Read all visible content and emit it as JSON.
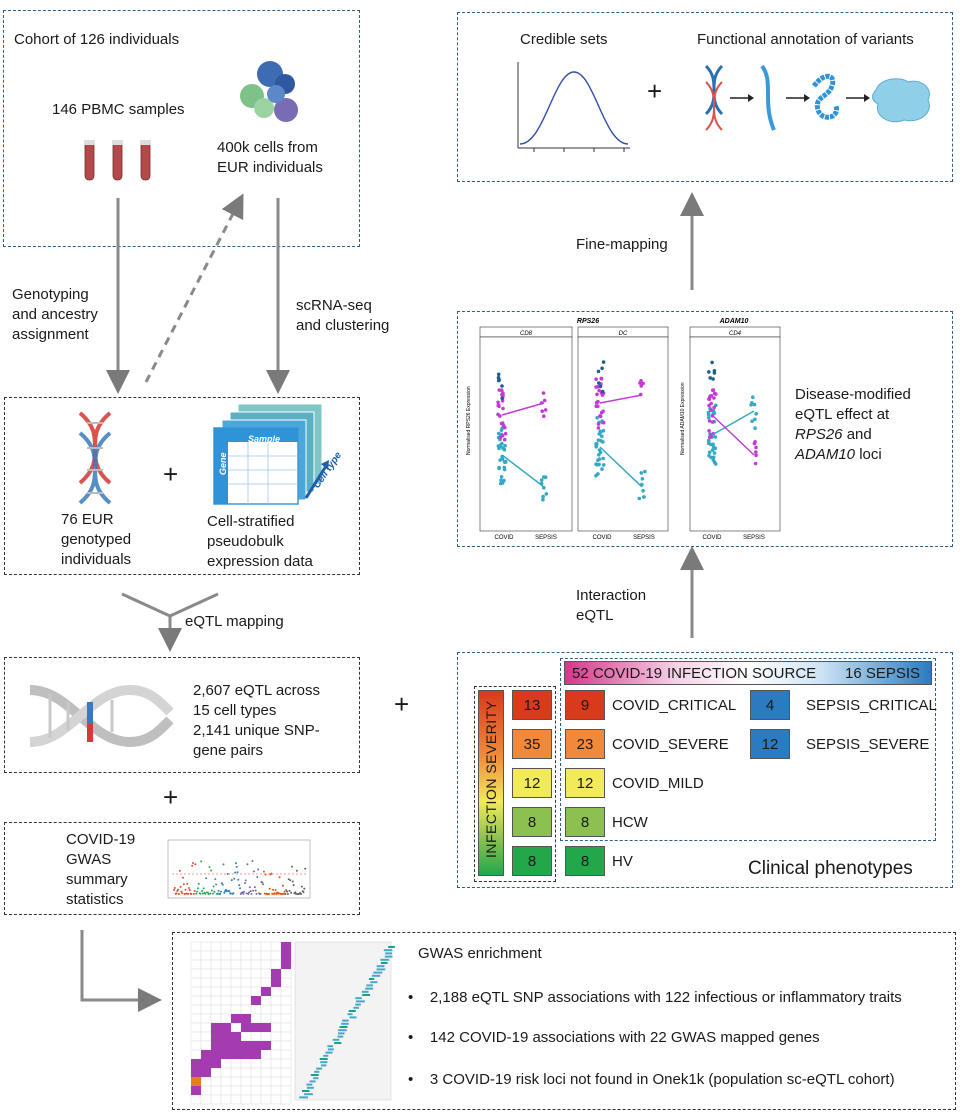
{
  "cohort": {
    "title": "Cohort of 126 individuals",
    "pbmc": "146 PBMC samples",
    "cells_line1": "400k cells from",
    "cells_line2": "EUR individuals"
  },
  "labels": {
    "genotyping_line1": "Genotyping",
    "genotyping_line2": "and ancestry",
    "genotyping_line3": "assignment",
    "scrna_line1": "scRNA-seq",
    "scrna_line2": "and clustering",
    "eqtl_mapping": "eQTL mapping",
    "finemapping": "Fine-mapping",
    "interaction_line1": "Interaction",
    "interaction_line2": "eQTL"
  },
  "genotype_box": {
    "geno_line1": "76 EUR",
    "geno_line2": "genotyped",
    "geno_line3": "individuals",
    "pseudo_line1": "Cell-stratified",
    "pseudo_line2": "pseudobulk",
    "pseudo_line3": "expression data",
    "sample_label": "Sample",
    "gene_label": "Gene",
    "celltype_label": "Cell type"
  },
  "eqtl_box": {
    "line1": "2,607 eQTL across",
    "line2": "15 cell types",
    "line3": "2,141 unique SNP-",
    "line4": "gene pairs"
  },
  "gwas_box": {
    "line1": "COVID-19",
    "line2": "GWAS",
    "line3": "summary",
    "line4": "statistics"
  },
  "finemap_box": {
    "credible_sets": "Credible sets",
    "functional": "Functional annotation of variants"
  },
  "interaction_box": {
    "gene1": "RPS26",
    "gene2": "ADAM10",
    "panel1": "CD8",
    "panel2": "DC",
    "panel3": "CD4",
    "ylabel1": "Normalised RPS26 Expression",
    "ylabel2": "Normalised ADAM10 Expression",
    "x_covid": "COVID",
    "x_sepsis": "SEPSIS",
    "desc_line1": "Disease-modified",
    "desc_line2": "eQTL effect at",
    "desc_gene1": "RPS26",
    "desc_and": " and",
    "desc_gene2": "ADAM10",
    "desc_loci": " loci"
  },
  "clinical": {
    "title": "Clinical phenotypes",
    "severity_label": "INFECTION SEVERITY",
    "source_left": "52 COVID-19",
    "source_mid": "INFECTION SOURCE",
    "source_right": "16 SEPSIS",
    "severity_totals": [
      "13",
      "35",
      "12",
      "8",
      "8"
    ],
    "covid": [
      {
        "n": "9",
        "label": "COVID_CRITICAL"
      },
      {
        "n": "23",
        "label": "COVID_SEVERE"
      },
      {
        "n": "12",
        "label": "COVID_MILD"
      },
      {
        "n": "8",
        "label": "HCW"
      },
      {
        "n": "8",
        "label": "HV"
      }
    ],
    "sepsis": [
      {
        "n": "4",
        "label": "SEPSIS_CRITICAL"
      },
      {
        "n": "12",
        "label": "SEPSIS_SEVERE"
      }
    ],
    "colors": {
      "critical": "#d83a1b",
      "severe": "#f08a3a",
      "mild": "#f2ea5a",
      "hcw": "#8cc152",
      "hv": "#22a84a",
      "sepsis": "#2a7bbf",
      "covid_pink": "#d6368a"
    }
  },
  "enrichment": {
    "title": "GWAS enrichment",
    "bullets": [
      "2,188 eQTL SNP associations with 122 infectious or inflammatory traits",
      "142 COVID-19 associations with 22 GWAS mapped genes",
      "3 COVID-19 risk loci not found in Onek1k (population sc-eQTL cohort)"
    ]
  },
  "plus": "+"
}
